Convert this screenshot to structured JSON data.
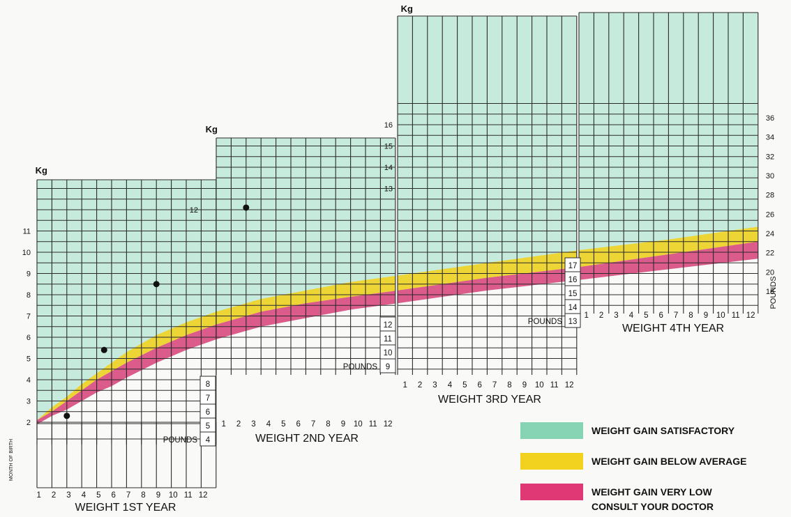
{
  "chart_data": {
    "type": "area",
    "title": "",
    "kg_label": "Kg",
    "panels": [
      {
        "title": "WEIGHT 1ST YEAR",
        "months": [
          "1",
          "2",
          "3",
          "4",
          "5",
          "6",
          "7",
          "8",
          "9",
          "10",
          "11",
          "12"
        ],
        "kg_ticks": [
          "2",
          "3",
          "4",
          "5",
          "6",
          "7",
          "8",
          "9",
          "10",
          "11"
        ],
        "pounds_label": "POUNDS",
        "pounds_ticks": [
          "4",
          "5",
          "6",
          "7",
          "8"
        ]
      },
      {
        "title": "WEIGHT 2ND YEAR",
        "months": [
          "1",
          "2",
          "3",
          "4",
          "5",
          "6",
          "7",
          "8",
          "9",
          "10",
          "11",
          "12"
        ],
        "kg_ticks": [
          "12"
        ],
        "pounds_label": "POUNDS",
        "pounds_ticks": [
          "9",
          "10",
          "11",
          "12"
        ]
      },
      {
        "title": "WEIGHT 3RD YEAR",
        "months": [
          "1",
          "2",
          "3",
          "4",
          "5",
          "6",
          "7",
          "8",
          "9",
          "10",
          "11",
          "12"
        ],
        "kg_ticks": [
          "13",
          "14",
          "15",
          "16"
        ],
        "pounds_label": "POUNDS",
        "pounds_ticks": [
          "13",
          "14",
          "15",
          "16",
          "17"
        ]
      },
      {
        "title": "WEIGHT 4TH YEAR",
        "months": [
          "1",
          "2",
          "3",
          "4",
          "5",
          "6",
          "7",
          "8",
          "9",
          "10",
          "11",
          "12"
        ],
        "pounds_label": "POUNDS",
        "pounds_ticks": [
          "18",
          "20",
          "22",
          "24",
          "26",
          "28",
          "30",
          "32",
          "34",
          "36"
        ]
      }
    ],
    "birth_label": "MONTH OF BIRTH",
    "birth_kg": 2,
    "x_unit": "months from birth",
    "y_unit": "kg",
    "series": [
      {
        "name": "WEIGHT GAIN SATISFACTORY",
        "color": "#86d4b4",
        "region": "above yellow band"
      },
      {
        "name": "WEIGHT GAIN BELOW AVERAGE",
        "color": "#f2d21f",
        "upper": [
          [
            0,
            2.1
          ],
          [
            1,
            2.7
          ],
          [
            2,
            3.2
          ],
          [
            3,
            3.8
          ],
          [
            4,
            4.3
          ],
          [
            5,
            4.8
          ],
          [
            6,
            5.3
          ],
          [
            8,
            6.1
          ],
          [
            10,
            6.7
          ],
          [
            12,
            7.2
          ],
          [
            15,
            7.8
          ],
          [
            18,
            8.2
          ],
          [
            21,
            8.6
          ],
          [
            24,
            8.9
          ],
          [
            30,
            9.5
          ],
          [
            36,
            10.1
          ],
          [
            42,
            10.6
          ],
          [
            48,
            11.2
          ]
        ],
        "lower": [
          [
            0,
            2.1
          ],
          [
            1,
            2.5
          ],
          [
            2,
            3.0
          ],
          [
            3,
            3.5
          ],
          [
            4,
            4.0
          ],
          [
            5,
            4.4
          ],
          [
            6,
            4.8
          ],
          [
            8,
            5.5
          ],
          [
            10,
            6.1
          ],
          [
            12,
            6.6
          ],
          [
            15,
            7.2
          ],
          [
            18,
            7.6
          ],
          [
            21,
            7.9
          ],
          [
            24,
            8.2
          ],
          [
            30,
            8.8
          ],
          [
            36,
            9.3
          ],
          [
            42,
            9.9
          ],
          [
            48,
            10.5
          ]
        ]
      },
      {
        "name": "WEIGHT GAIN VERY LOW CONSULT YOUR DOCTOR",
        "color": "#e03775",
        "upper": [
          [
            0,
            2.1
          ],
          [
            1,
            2.5
          ],
          [
            2,
            3.0
          ],
          [
            3,
            3.5
          ],
          [
            4,
            4.0
          ],
          [
            5,
            4.4
          ],
          [
            6,
            4.8
          ],
          [
            8,
            5.5
          ],
          [
            10,
            6.1
          ],
          [
            12,
            6.6
          ],
          [
            15,
            7.2
          ],
          [
            18,
            7.6
          ],
          [
            21,
            7.9
          ],
          [
            24,
            8.2
          ],
          [
            30,
            8.8
          ],
          [
            36,
            9.3
          ],
          [
            42,
            9.9
          ],
          [
            48,
            10.5
          ]
        ],
        "lower": [
          [
            0,
            1.9
          ],
          [
            1,
            2.3
          ],
          [
            2,
            2.6
          ],
          [
            3,
            3.0
          ],
          [
            4,
            3.4
          ],
          [
            5,
            3.7
          ],
          [
            6,
            4.1
          ],
          [
            8,
            4.8
          ],
          [
            10,
            5.4
          ],
          [
            12,
            5.9
          ],
          [
            15,
            6.5
          ],
          [
            18,
            6.9
          ],
          [
            21,
            7.3
          ],
          [
            24,
            7.6
          ],
          [
            30,
            8.2
          ],
          [
            36,
            8.7
          ],
          [
            42,
            9.2
          ],
          [
            48,
            9.7
          ]
        ]
      }
    ],
    "plotted_points": [
      {
        "month": 2,
        "kg": 2.3
      },
      {
        "month": 4.5,
        "kg": 5.4
      },
      {
        "month": 8,
        "kg": 8.5
      },
      {
        "month": 14,
        "kg": 12.1
      }
    ],
    "grid": true,
    "legend": [
      {
        "label": "WEIGHT GAIN SATISFACTORY",
        "color": "#86d4b4"
      },
      {
        "label": "WEIGHT GAIN BELOW AVERAGE",
        "color": "#f2d21f"
      },
      {
        "label": "WEIGHT GAIN VERY LOW",
        "label2": "CONSULT YOUR DOCTOR",
        "color": "#e03775"
      }
    ],
    "legend_position": "bottom-right",
    "pounds_axis_label": "POUNDS"
  }
}
